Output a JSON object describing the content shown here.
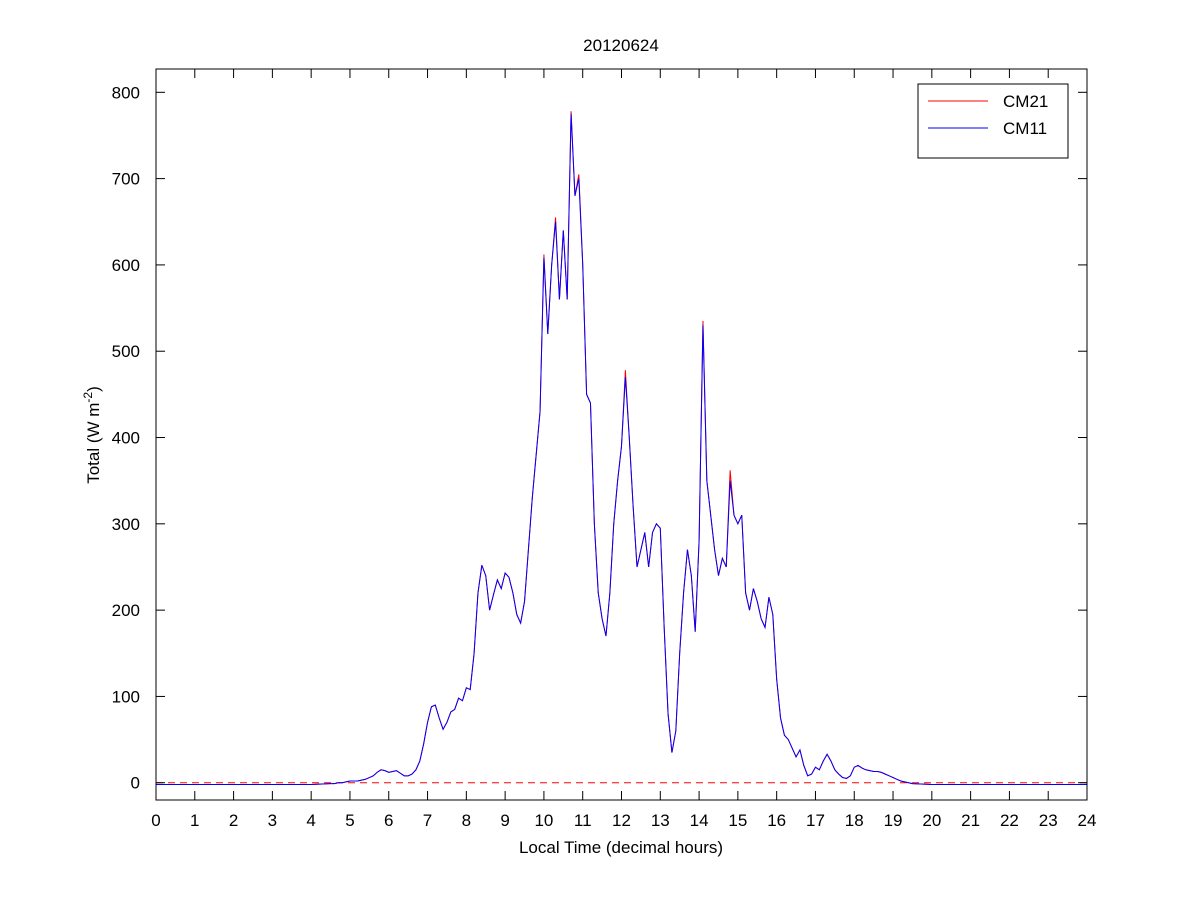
{
  "chart_data": {
    "type": "line",
    "title": "20120624",
    "xlabel": "Local Time (decimal hours)",
    "ylabel": [
      "Total (W m",
      "-2",
      ")"
    ],
    "xlim": [
      0,
      24
    ],
    "ylim": [
      -20,
      827
    ],
    "xticks": [
      0,
      1,
      2,
      3,
      4,
      5,
      6,
      7,
      8,
      9,
      10,
      11,
      12,
      13,
      14,
      15,
      16,
      17,
      18,
      19,
      20,
      21,
      22,
      23,
      24
    ],
    "yticks": [
      0,
      100,
      200,
      300,
      400,
      500,
      600,
      700,
      800
    ],
    "grid": false,
    "legend": "upper right",
    "reference_line": {
      "y": 0,
      "color": "#ff0000",
      "dashed": true
    },
    "x": [
      0,
      0.5,
      1,
      1.5,
      2,
      2.5,
      3,
      3.5,
      4,
      4.5,
      4.6,
      4.7,
      4.8,
      4.9,
      5.0,
      5.1,
      5.2,
      5.3,
      5.4,
      5.5,
      5.6,
      5.7,
      5.8,
      5.9,
      6.0,
      6.1,
      6.2,
      6.3,
      6.4,
      6.5,
      6.6,
      6.7,
      6.8,
      6.9,
      7.0,
      7.1,
      7.2,
      7.3,
      7.4,
      7.5,
      7.6,
      7.7,
      7.8,
      7.9,
      8.0,
      8.1,
      8.2,
      8.3,
      8.4,
      8.5,
      8.6,
      8.7,
      8.8,
      8.9,
      9.0,
      9.1,
      9.2,
      9.3,
      9.4,
      9.5,
      9.6,
      9.7,
      9.8,
      9.9,
      10.0,
      10.1,
      10.2,
      10.3,
      10.4,
      10.5,
      10.6,
      10.7,
      10.8,
      10.9,
      11.0,
      11.1,
      11.2,
      11.3,
      11.4,
      11.5,
      11.6,
      11.7,
      11.8,
      11.9,
      12.0,
      12.1,
      12.2,
      12.3,
      12.4,
      12.5,
      12.6,
      12.7,
      12.8,
      12.9,
      13.0,
      13.1,
      13.2,
      13.3,
      13.4,
      13.5,
      13.6,
      13.7,
      13.8,
      13.9,
      14.0,
      14.1,
      14.2,
      14.3,
      14.4,
      14.5,
      14.6,
      14.7,
      14.8,
      14.9,
      15.0,
      15.1,
      15.2,
      15.3,
      15.4,
      15.5,
      15.6,
      15.7,
      15.8,
      15.9,
      16.0,
      16.1,
      16.2,
      16.3,
      16.4,
      16.5,
      16.6,
      16.7,
      16.8,
      16.9,
      17.0,
      17.1,
      17.2,
      17.3,
      17.4,
      17.5,
      17.6,
      17.7,
      17.8,
      17.9,
      18.0,
      18.1,
      18.2,
      18.3,
      18.4,
      18.5,
      18.6,
      18.7,
      18.8,
      18.9,
      19.0,
      19.1,
      19.2,
      19.3,
      19.4,
      19.5,
      20,
      20.5,
      21,
      21.5,
      22,
      22.5,
      23,
      23.5,
      24
    ],
    "series": [
      {
        "name": "CM21",
        "color": "#ff0000",
        "values": [
          -2,
          -2,
          -2,
          -2,
          -2,
          -2,
          -2,
          -2,
          -2,
          -1,
          -1,
          0,
          0,
          1,
          2,
          2,
          2,
          3,
          4,
          6,
          8,
          12,
          15,
          14,
          12,
          13,
          14,
          11,
          8,
          8,
          10,
          15,
          25,
          45,
          70,
          88,
          90,
          75,
          62,
          70,
          82,
          85,
          98,
          95,
          110,
          108,
          150,
          220,
          252,
          240,
          200,
          218,
          235,
          225,
          243,
          238,
          220,
          195,
          185,
          210,
          270,
          330,
          380,
          430,
          612,
          520,
          600,
          655,
          560,
          640,
          560,
          778,
          680,
          705,
          602,
          450,
          440,
          300,
          220,
          190,
          170,
          220,
          300,
          350,
          390,
          478,
          400,
          320,
          250,
          270,
          290,
          250,
          290,
          300,
          295,
          180,
          80,
          35,
          60,
          150,
          220,
          270,
          240,
          175,
          280,
          535,
          350,
          310,
          270,
          240,
          260,
          250,
          362,
          310,
          300,
          310,
          220,
          200,
          225,
          210,
          190,
          180,
          215,
          195,
          120,
          75,
          55,
          50,
          40,
          30,
          38,
          20,
          8,
          10,
          18,
          15,
          25,
          33,
          25,
          15,
          10,
          6,
          5,
          8,
          18,
          20,
          17,
          15,
          14,
          13,
          13,
          12,
          10,
          8,
          6,
          4,
          2,
          1,
          0,
          -1,
          -2,
          -2,
          -2,
          -2,
          -2,
          -2,
          -2,
          -2,
          -2
        ]
      },
      {
        "name": "CM11",
        "color": "#0000ff",
        "values": [
          -2,
          -2,
          -2,
          -2,
          -2,
          -2,
          -2,
          -2,
          -2,
          -1,
          -1,
          0,
          0,
          1,
          2,
          2,
          2,
          3,
          4,
          6,
          8,
          12,
          15,
          14,
          12,
          13,
          14,
          11,
          8,
          8,
          10,
          15,
          25,
          45,
          70,
          88,
          90,
          75,
          62,
          70,
          82,
          85,
          98,
          95,
          110,
          108,
          150,
          220,
          252,
          240,
          200,
          218,
          235,
          225,
          243,
          238,
          220,
          195,
          185,
          210,
          270,
          330,
          380,
          430,
          608,
          520,
          600,
          650,
          560,
          640,
          560,
          775,
          680,
          700,
          600,
          450,
          440,
          300,
          220,
          190,
          170,
          220,
          300,
          350,
          390,
          470,
          400,
          320,
          250,
          270,
          290,
          250,
          290,
          300,
          295,
          180,
          80,
          35,
          60,
          150,
          220,
          270,
          240,
          175,
          280,
          530,
          350,
          310,
          270,
          240,
          260,
          250,
          350,
          310,
          300,
          310,
          220,
          200,
          225,
          210,
          190,
          180,
          215,
          195,
          120,
          75,
          55,
          50,
          40,
          30,
          38,
          20,
          8,
          10,
          18,
          15,
          25,
          33,
          25,
          15,
          10,
          6,
          5,
          8,
          18,
          20,
          17,
          15,
          14,
          13,
          13,
          12,
          10,
          8,
          6,
          4,
          2,
          1,
          0,
          -1,
          -2,
          -2,
          -2,
          -2,
          -2,
          -2,
          -2,
          -2,
          -2
        ]
      }
    ]
  }
}
